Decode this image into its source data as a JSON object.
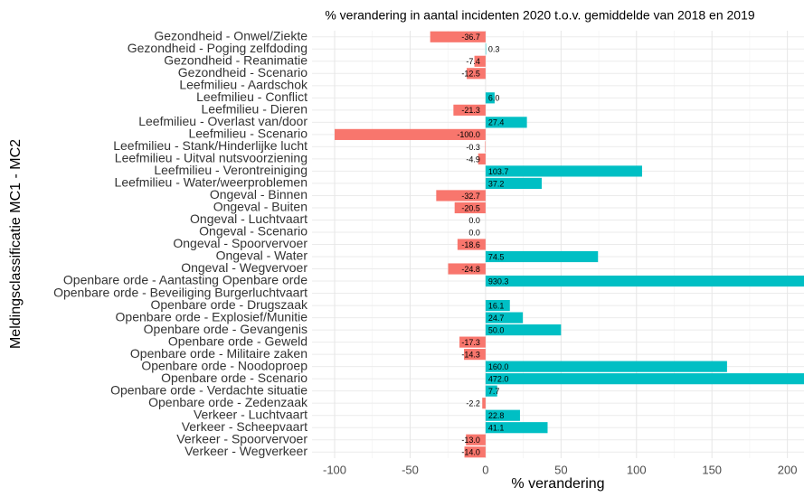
{
  "chart_data": {
    "type": "bar",
    "orientation": "horizontal",
    "title": "% verandering in aantal incidenten 2020 t.o.v. gemiddelde van 2018 en 2019",
    "x_label": "% verandering",
    "y_label": "Meldingsclassificatie MC1 - MC2",
    "categories": [
      "Gezondheid - Onwel/Ziekte",
      "Gezondheid - Poging zelfdoding",
      "Gezondheid - Reanimatie",
      "Gezondheid - Scenario",
      "Leefmilieu - Aardschok",
      "Leefmilieu - Conflict",
      "Leefmilieu - Dieren",
      "Leefmilieu - Overlast van/door",
      "Leefmilieu - Scenario",
      "Leefmilieu - Stank/Hinderlijke lucht",
      "Leefmilieu - Uitval nutsvoorziening",
      "Leefmilieu - Verontreiniging",
      "Leefmilieu - Water/weerproblemen",
      "Ongeval - Binnen",
      "Ongeval - Buiten",
      "Ongeval - Luchtvaart",
      "Ongeval - Scenario",
      "Ongeval - Spoorvervoer",
      "Ongeval - Water",
      "Ongeval - Wegvervoer",
      "Openbare orde - Aantasting Openbare orde",
      "Openbare orde - Beveiliging Burgerluchtvaart",
      "Openbare orde - Drugszaak",
      "Openbare orde - Explosief/Munitie",
      "Openbare orde - Gevangenis",
      "Openbare orde - Geweld",
      "Openbare orde - Militaire zaken",
      "Openbare orde - Noodoproep",
      "Openbare orde - Scenario",
      "Openbare orde - Verdachte situatie",
      "Openbare orde - Zedenzaak",
      "Verkeer - Luchtvaart",
      "Verkeer - Scheepvaart",
      "Verkeer - Spoorvervoer",
      "Verkeer - Wegverkeer"
    ],
    "values": [
      -36.7,
      0.3,
      -7.4,
      -12.5,
      null,
      6.0,
      -21.3,
      27.4,
      -100.0,
      -0.3,
      -4.9,
      103.7,
      37.2,
      -32.7,
      -20.5,
      0.0,
      0.0,
      -18.6,
      74.5,
      -24.8,
      930.3,
      null,
      16.1,
      24.7,
      50.0,
      -17.3,
      -14.3,
      160.0,
      472.0,
      7.7,
      -2.2,
      22.8,
      41.1,
      -13.0,
      -14.0
    ],
    "value_labels": [
      "-36.7",
      "0.3",
      "-7.4",
      "-12.5",
      null,
      "6.0",
      "-21.3",
      "27.4",
      "-100.0",
      "-0.3",
      "-4.9",
      "103.7",
      "37.2",
      "-32.7",
      "-20.5",
      "0.0",
      "0.0",
      "-18.6",
      "74.5",
      "-24.8",
      "930.3",
      null,
      "16.1",
      "24.7",
      "50.0",
      "-17.3",
      "-14.3",
      "160.0",
      "472.0",
      "7.7",
      "-2.2",
      "22.8",
      "41.1",
      "-13.0",
      "-14.0"
    ],
    "colors": {
      "negative": "#F8766D",
      "positive": "#00BFC4"
    },
    "xlim": [
      -115,
      211
    ],
    "xticks": [
      -100,
      -50,
      0,
      50,
      100,
      150,
      200
    ],
    "grid": true
  }
}
